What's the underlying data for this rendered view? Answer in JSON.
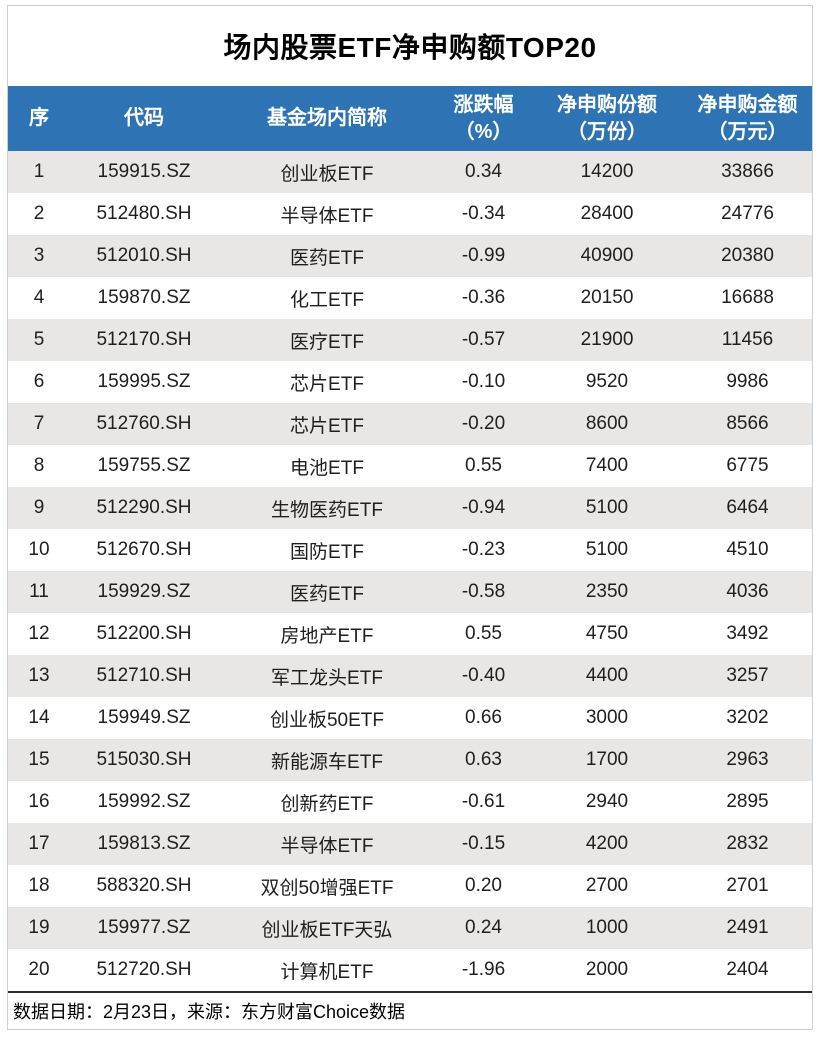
{
  "title": "场内股票ETF净申购额TOP20",
  "header": {
    "cells": [
      {
        "line1": "序",
        "line2": ""
      },
      {
        "line1": "代码",
        "line2": ""
      },
      {
        "line1": "基金场内简称",
        "line2": ""
      },
      {
        "line1": "涨跌幅",
        "line2": "（%）"
      },
      {
        "line1": "净申购份额",
        "line2": "（万份）"
      },
      {
        "line1": "净申购金额",
        "line2": "（万元）"
      }
    ]
  },
  "chart_data": {
    "type": "table",
    "title": "场内股票ETF净申购额TOP20",
    "columns": [
      "序",
      "代码",
      "基金场内简称",
      "涨跌幅（%）",
      "净申购份额（万份）",
      "净申购金额（万元）"
    ],
    "rows": [
      [
        "1",
        "159915.SZ",
        "创业板ETF",
        "0.34",
        "14200",
        "33866"
      ],
      [
        "2",
        "512480.SH",
        "半导体ETF",
        "-0.34",
        "28400",
        "24776"
      ],
      [
        "3",
        "512010.SH",
        "医药ETF",
        "-0.99",
        "40900",
        "20380"
      ],
      [
        "4",
        "159870.SZ",
        "化工ETF",
        "-0.36",
        "20150",
        "16688"
      ],
      [
        "5",
        "512170.SH",
        "医疗ETF",
        "-0.57",
        "21900",
        "11456"
      ],
      [
        "6",
        "159995.SZ",
        "芯片ETF",
        "-0.10",
        "9520",
        "9986"
      ],
      [
        "7",
        "512760.SH",
        "芯片ETF",
        "-0.20",
        "8600",
        "8566"
      ],
      [
        "8",
        "159755.SZ",
        "电池ETF",
        "0.55",
        "7400",
        "6775"
      ],
      [
        "9",
        "512290.SH",
        "生物医药ETF",
        "-0.94",
        "5100",
        "6464"
      ],
      [
        "10",
        "512670.SH",
        "国防ETF",
        "-0.23",
        "5100",
        "4510"
      ],
      [
        "11",
        "159929.SZ",
        "医药ETF",
        "-0.58",
        "2350",
        "4036"
      ],
      [
        "12",
        "512200.SH",
        "房地产ETF",
        "0.55",
        "4750",
        "3492"
      ],
      [
        "13",
        "512710.SH",
        "军工龙头ETF",
        "-0.40",
        "4400",
        "3257"
      ],
      [
        "14",
        "159949.SZ",
        "创业板50ETF",
        "0.66",
        "3000",
        "3202"
      ],
      [
        "15",
        "515030.SH",
        "新能源车ETF",
        "0.63",
        "1700",
        "2963"
      ],
      [
        "16",
        "159992.SZ",
        "创新药ETF",
        "-0.61",
        "2940",
        "2895"
      ],
      [
        "17",
        "159813.SZ",
        "半导体ETF",
        "-0.15",
        "4200",
        "2832"
      ],
      [
        "18",
        "588320.SH",
        "双创50增强ETF",
        "0.20",
        "2700",
        "2701"
      ],
      [
        "19",
        "159977.SZ",
        "创业板ETF天弘",
        "0.24",
        "1000",
        "2491"
      ],
      [
        "20",
        "512720.SH",
        "计算机ETF",
        "-1.96",
        "2000",
        "2404"
      ]
    ],
    "source_note": "数据日期：2月23日，来源：东方财富Choice数据"
  },
  "colors": {
    "header_bg": "#2E74B5",
    "header_text": "#FFFFFF",
    "stripe_bg": "#E8E7E6",
    "row_bg": "#FFFFFF",
    "body_text": "#1F1F1F",
    "title_text": "#000000",
    "footer_top_border": "#2B2B2B",
    "outer_border": "#C9CDD6"
  }
}
